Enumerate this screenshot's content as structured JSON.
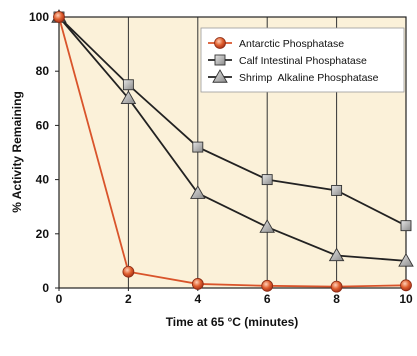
{
  "chart_data": {
    "type": "line",
    "title": "",
    "xlabel": "Time at 65 °C (minutes)",
    "ylabel": "% Activity Remaining",
    "xlim": [
      0,
      10
    ],
    "ylim": [
      0,
      100
    ],
    "x_ticks": [
      "0",
      "2",
      "4",
      "6",
      "8",
      "10"
    ],
    "y_ticks": [
      "0",
      "20",
      "40",
      "60",
      "80",
      "100"
    ],
    "grid": "vertical",
    "legend_position": "top-right",
    "x": [
      0,
      2,
      4,
      6,
      8,
      10
    ],
    "series": [
      {
        "name": "Antarctic Phosphatase",
        "marker": "circle",
        "color": "#d9542b",
        "values": [
          100,
          6,
          1.5,
          0.8,
          0.5,
          1
        ]
      },
      {
        "name": "Calf Intestinal Phosphatase",
        "marker": "square",
        "color": "#222222",
        "values": [
          100,
          75,
          52,
          40,
          36,
          23
        ]
      },
      {
        "name": "Shrimp  Alkaline Phosphatase",
        "marker": "triangle",
        "color": "#222222",
        "values": [
          100,
          70,
          35,
          22.5,
          12,
          10
        ]
      }
    ],
    "colors": {
      "plot_background": "#fbf1d9",
      "antarctic": "#d9542b"
    }
  }
}
